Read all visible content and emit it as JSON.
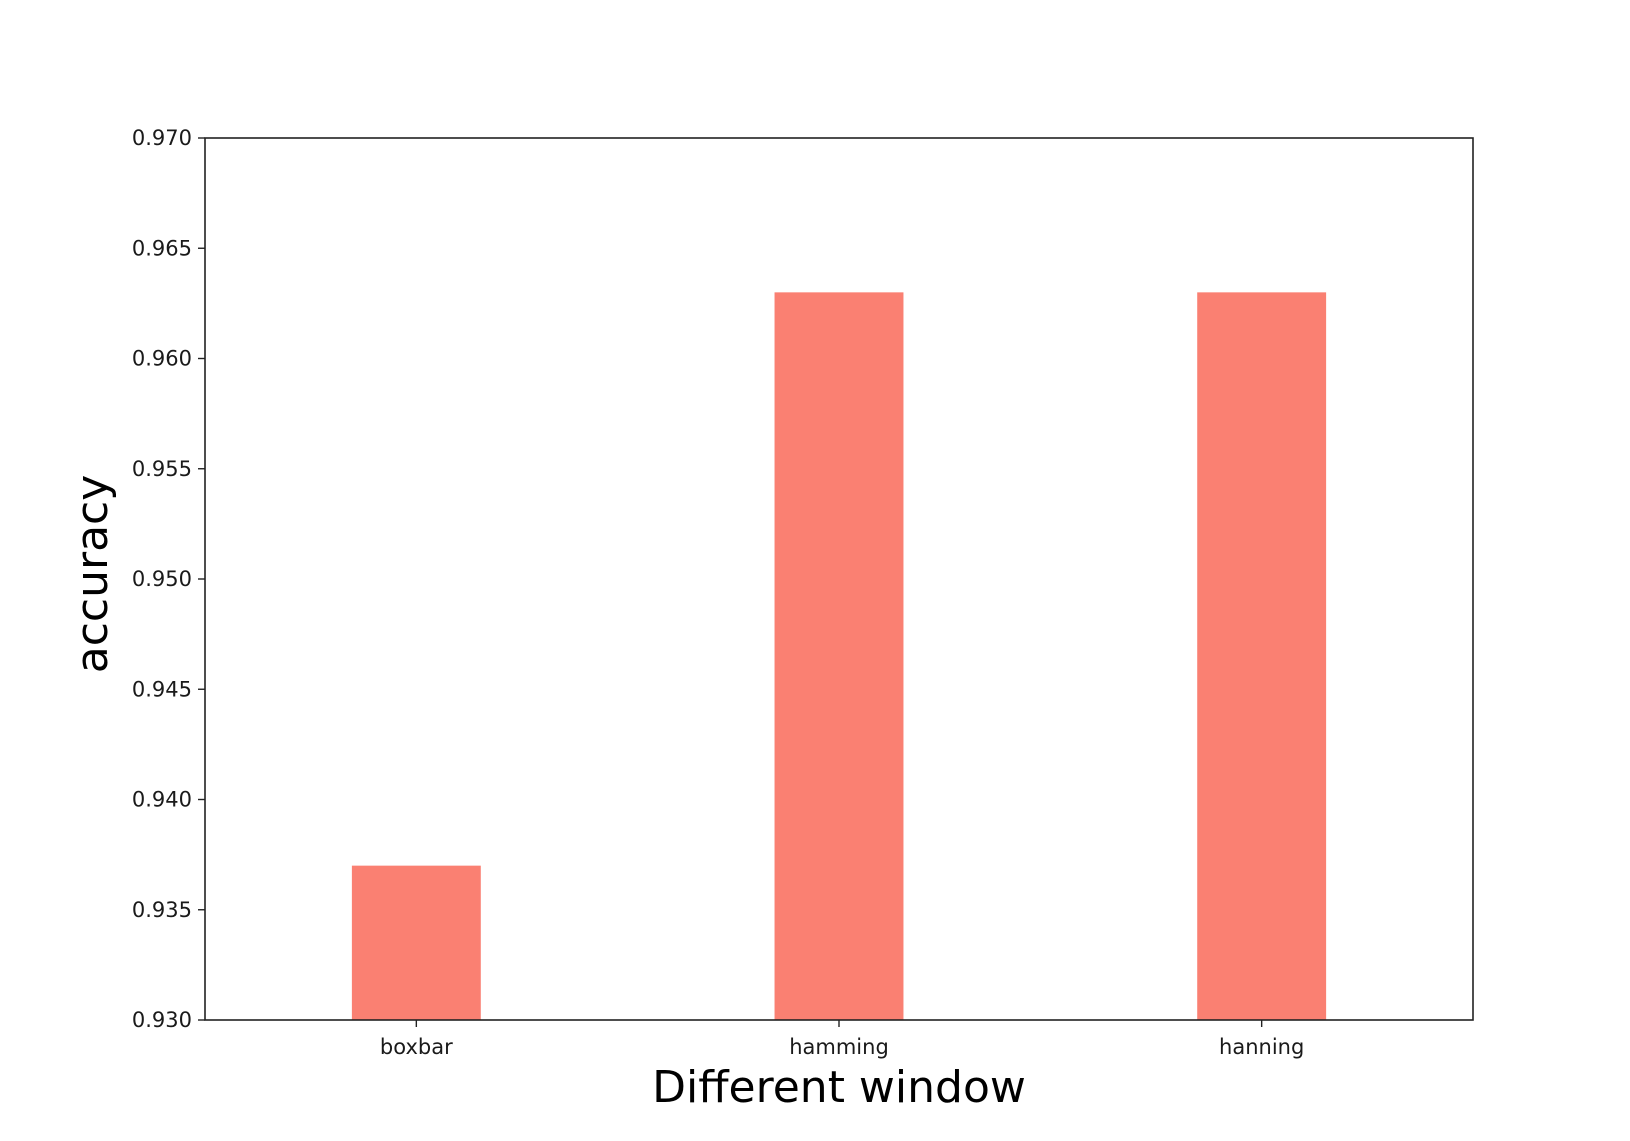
{
  "chart_data": {
    "type": "bar",
    "title": "",
    "xlabel": "Different window",
    "ylabel": "accuracy",
    "categories": [
      "boxbar",
      "hamming",
      "hanning"
    ],
    "values": [
      0.937,
      0.963,
      0.963
    ],
    "ylim": [
      0.93,
      0.97
    ],
    "yticks": [
      "0.930",
      "0.935",
      "0.940",
      "0.945",
      "0.950",
      "0.955",
      "0.960",
      "0.965",
      "0.970"
    ],
    "bar_color": "#fa8072",
    "grid": false,
    "legend": "none"
  }
}
